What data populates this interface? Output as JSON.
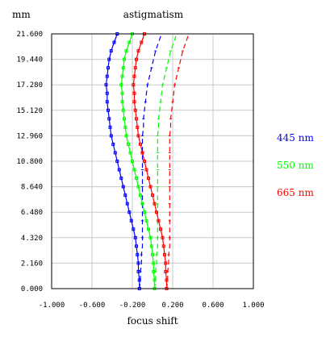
{
  "chart_data": {
    "type": "line",
    "title": "astigmatism",
    "xlabel": "focus shift",
    "ylabel": "mm",
    "xlim": [
      -1.0,
      1.0
    ],
    "ylim": [
      0.0,
      21.6
    ],
    "x_ticks": [
      "-1.000",
      "-0.600",
      "-0.200",
      "0.200",
      "0.600",
      "1.000"
    ],
    "x_tick_values": [
      -1.0,
      -0.6,
      -0.2,
      0.2,
      0.6,
      1.0
    ],
    "y_ticks": [
      "0.000",
      "2.160",
      "4.320",
      "6.480",
      "8.640",
      "10.800",
      "12.960",
      "15.120",
      "17.280",
      "19.440",
      "21.600"
    ],
    "y_tick_values": [
      0.0,
      2.16,
      4.32,
      6.48,
      8.64,
      10.8,
      12.96,
      15.12,
      17.28,
      19.44,
      21.6
    ],
    "grid": true,
    "legend_position": "right",
    "y": [
      0.0,
      0.72,
      1.44,
      2.16,
      2.88,
      3.6,
      4.32,
      5.04,
      5.76,
      6.48,
      7.2,
      7.92,
      8.64,
      9.36,
      10.08,
      10.8,
      11.52,
      12.24,
      12.96,
      13.68,
      14.4,
      15.12,
      15.84,
      16.56,
      17.28,
      18.0,
      18.72,
      19.44,
      20.16,
      20.88,
      21.6
    ],
    "series": [
      {
        "name": "445 nm",
        "color": "#0000ff",
        "tangential": [
          -0.13,
          -0.13,
          -0.14,
          -0.14,
          -0.15,
          -0.16,
          -0.17,
          -0.19,
          -0.21,
          -0.23,
          -0.25,
          -0.27,
          -0.29,
          -0.31,
          -0.33,
          -0.35,
          -0.37,
          -0.39,
          -0.41,
          -0.42,
          -0.43,
          -0.44,
          -0.45,
          -0.45,
          -0.46,
          -0.45,
          -0.44,
          -0.43,
          -0.41,
          -0.38,
          -0.35
        ],
        "sagittal": [
          -0.13,
          -0.12,
          -0.12,
          -0.11,
          -0.11,
          -0.1,
          -0.1,
          -0.1,
          -0.1,
          -0.1,
          -0.1,
          -0.1,
          -0.1,
          -0.1,
          -0.1,
          -0.1,
          -0.1,
          -0.1,
          -0.1,
          -0.09,
          -0.09,
          -0.08,
          -0.07,
          -0.06,
          -0.05,
          -0.03,
          -0.01,
          0.01,
          0.03,
          0.06,
          0.09
        ]
      },
      {
        "name": "550 nm",
        "color": "#00ff00",
        "tangential": [
          0.02,
          0.02,
          0.01,
          0.01,
          0.0,
          -0.01,
          -0.02,
          -0.04,
          -0.06,
          -0.08,
          -0.1,
          -0.12,
          -0.14,
          -0.16,
          -0.18,
          -0.2,
          -0.22,
          -0.24,
          -0.26,
          -0.27,
          -0.28,
          -0.29,
          -0.3,
          -0.3,
          -0.31,
          -0.3,
          -0.29,
          -0.28,
          -0.26,
          -0.23,
          -0.2
        ],
        "sagittal": [
          0.02,
          0.03,
          0.03,
          0.04,
          0.04,
          0.05,
          0.05,
          0.05,
          0.05,
          0.05,
          0.05,
          0.05,
          0.05,
          0.05,
          0.05,
          0.05,
          0.05,
          0.05,
          0.05,
          0.06,
          0.06,
          0.07,
          0.08,
          0.09,
          0.1,
          0.12,
          0.14,
          0.16,
          0.18,
          0.21,
          0.24
        ]
      },
      {
        "name": "665 nm",
        "color": "#ff0000",
        "tangential": [
          0.14,
          0.14,
          0.13,
          0.13,
          0.12,
          0.11,
          0.1,
          0.08,
          0.06,
          0.04,
          0.02,
          0.0,
          -0.02,
          -0.04,
          -0.06,
          -0.08,
          -0.1,
          -0.12,
          -0.14,
          -0.15,
          -0.16,
          -0.17,
          -0.18,
          -0.18,
          -0.19,
          -0.18,
          -0.17,
          -0.16,
          -0.14,
          -0.11,
          -0.08
        ],
        "sagittal": [
          0.14,
          0.15,
          0.15,
          0.16,
          0.16,
          0.17,
          0.17,
          0.17,
          0.17,
          0.17,
          0.17,
          0.17,
          0.17,
          0.17,
          0.17,
          0.17,
          0.17,
          0.17,
          0.17,
          0.18,
          0.18,
          0.19,
          0.2,
          0.21,
          0.22,
          0.24,
          0.26,
          0.28,
          0.3,
          0.33,
          0.36
        ]
      }
    ]
  }
}
